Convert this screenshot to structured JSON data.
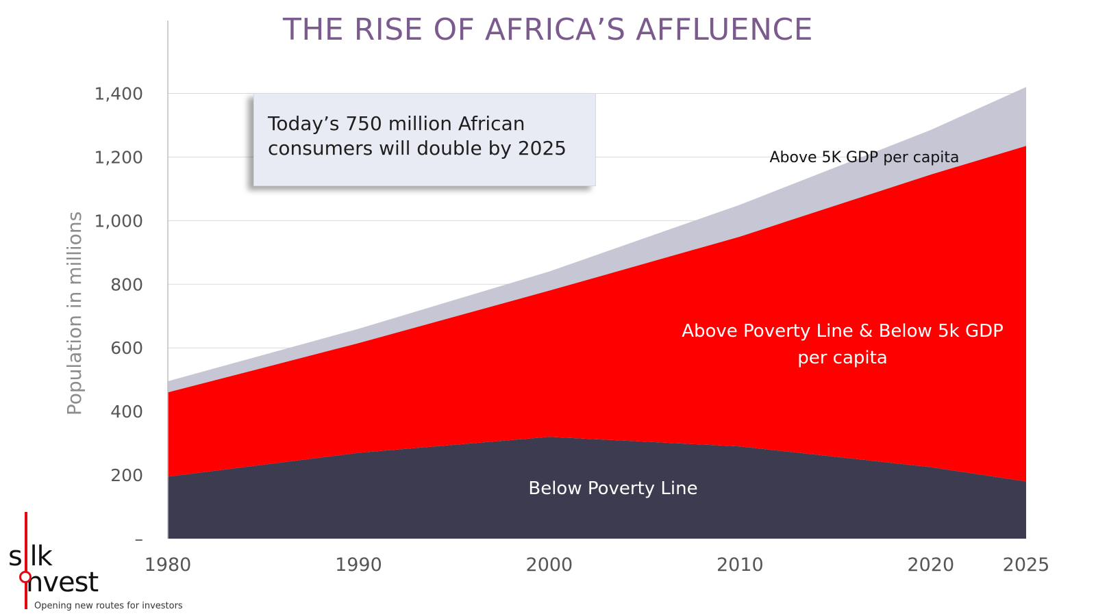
{
  "title": "THE RISE OF AFRICA’S AFFLUENCE",
  "callout": {
    "line1": "Today’s 750 million African",
    "line2": "consumers will double by 2025"
  },
  "logo": {
    "word1": "s lk",
    "word2": "nvest",
    "tagline": "Opening new routes for investors"
  },
  "chart_data": {
    "type": "area",
    "stacked": true,
    "ylabel": "Population in millions",
    "xlabel": "",
    "ylim": [
      0,
      1500
    ],
    "yticks": [
      0,
      200,
      400,
      600,
      800,
      1000,
      1200,
      1400
    ],
    "ytick_labels": [
      "–",
      "200",
      "400",
      "600",
      "800",
      "1,000",
      "1,200",
      "1,400"
    ],
    "x": [
      1980,
      1990,
      2000,
      2010,
      2020,
      2025
    ],
    "xtick_labels": [
      "1980",
      "1990",
      "2000",
      "2010",
      "2020",
      "2025"
    ],
    "grid": "horizontal",
    "series": [
      {
        "label": "Below Poverty Line",
        "color": "#3c3b4f",
        "values": [
          195,
          270,
          320,
          290,
          225,
          180
        ]
      },
      {
        "label": "Above Poverty Line & Below 5k GDP per capita",
        "color": "#ff0000",
        "values": [
          265,
          345,
          460,
          660,
          920,
          1055
        ]
      },
      {
        "label": "Above 5K GDP per capita",
        "color": "#c6c6d4",
        "values": [
          35,
          45,
          60,
          100,
          140,
          185
        ]
      }
    ]
  }
}
